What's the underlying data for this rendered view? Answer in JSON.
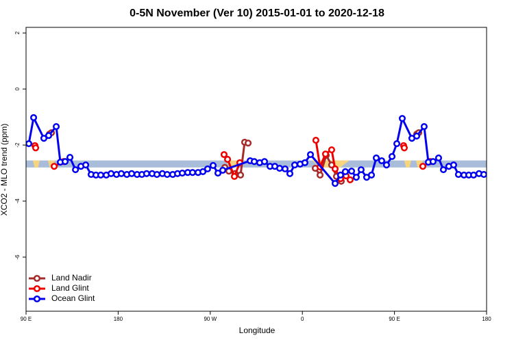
{
  "chart_data": {
    "type": "line",
    "title": "0-5N November (Ver 10)   2015-01-01 to 2020-12-18",
    "x_label": "Longitude",
    "y_label": "XCO2 - MLO trend (ppm)",
    "xlim": [
      90,
      540
    ],
    "ylim": [
      -7.93,
      2.2
    ],
    "xticks": [
      {
        "value": 90,
        "label": "90 E"
      },
      {
        "value": 180,
        "label": "180"
      },
      {
        "value": 270,
        "label": "90 W"
      },
      {
        "value": 360,
        "label": "0"
      },
      {
        "value": 450,
        "label": "90 E"
      },
      {
        "value": 540,
        "label": "180"
      }
    ],
    "yticks": [
      2,
      0,
      -2,
      -4,
      -6
    ],
    "band": {
      "ymin": -2.8,
      "ymax": -2.55,
      "color": "#a9bddb"
    },
    "highlights": {
      "color": "#f9d47e",
      "ranges": [
        [
          96.7,
          103.4
        ],
        [
          111.4,
          118.1
        ],
        [
          285.5,
          300.3
        ],
        [
          369.2,
          406
        ],
        [
          459.6,
          466.3
        ],
        [
          471,
          477.7
        ]
      ]
    },
    "legend": "bottom-left",
    "series": [
      {
        "name": "Land Nadir",
        "color": "#a52a2a",
        "x": [
          112.8,
          114.8,
          null,
          284.2,
          288.2,
          294.2,
          299.6,
          303.6,
          307.0,
          null,
          372.6,
          377.3,
          383.3,
          388.6,
          393.3,
          398.0,
          null,
          471.7,
          473.7
        ],
        "values": [
          -1.61,
          -1.56,
          null,
          -2.8,
          -2.93,
          -3.02,
          -3.07,
          -1.9,
          -1.93,
          null,
          -2.83,
          -3.07,
          -2.37,
          -2.71,
          -3.12,
          -3.29,
          null,
          -1.61,
          -1.56
        ]
      },
      {
        "name": "Land Glint",
        "color": "#ee0000",
        "x": [
          98.7,
          99.4,
          null,
          117.5,
          126.8,
          null,
          283.5,
          286.9,
          293.6,
          298.9,
          null,
          373.2,
          377.3,
          382.6,
          388.6,
          392.0,
          397.3,
          402.7,
          406.7,
          null,
          458.9,
          459.6,
          null,
          477.7,
          485.0
        ],
        "values": [
          -2.02,
          -2.1,
          null,
          -2.76,
          -2.59,
          null,
          -2.34,
          -2.51,
          -3.12,
          -2.63,
          null,
          -1.83,
          -2.78,
          -2.32,
          -2.17,
          -2.85,
          -3.2,
          -3.1,
          -3.24,
          null,
          -2.02,
          -2.1,
          null,
          -2.76,
          -2.59
        ]
      },
      {
        "name": "Ocean Glint",
        "color": "#0000ee",
        "x": [
          92.7,
          97.4,
          107.4,
          112.1,
          119.5,
          123.5,
          128.2,
          132.9,
          138.3,
          143.6,
          148.3,
          153.6,
          158.3,
          163.0,
          168.4,
          173.1,
          178.4,
          183.1,
          188.5,
          193.2,
          198.5,
          203.2,
          207.8,
          213.2,
          217.9,
          223.2,
          227.9,
          233.3,
          238.0,
          242.7,
          248.0,
          252.7,
          258.1,
          262.8,
          267.4,
          272.8,
          277.5,
          282.2,
          309.0,
          313.0,
          318.3,
          323.0,
          328.4,
          333.1,
          337.8,
          343.1,
          347.8,
          352.5,
          357.8,
          362.5,
          367.9,
          392.0,
          397.3,
          402.0,
          408.1,
          412.7,
          417.4,
          422.8,
          427.5,
          432.2,
          437.5,
          442.2,
          447.6,
          452.3,
          457.6,
          467.0,
          471.7,
          479.0,
          483.1,
          487.7,
          493.1,
          497.8,
          503.1,
          507.8,
          512.5,
          517.9,
          522.6,
          527.3,
          532.6,
          537.3
        ],
        "values": [
          -1.95,
          -1.02,
          -1.76,
          -1.66,
          -1.34,
          -2.61,
          -2.59,
          -2.44,
          -2.88,
          -2.76,
          -2.71,
          -3.05,
          -3.07,
          -3.07,
          -3.07,
          -3.02,
          -3.05,
          -3.02,
          -3.05,
          -3.02,
          -3.05,
          -3.05,
          -3.02,
          -3.02,
          -3.05,
          -3.02,
          -3.05,
          -3.05,
          -3.02,
          -3.0,
          -2.98,
          -2.98,
          -2.98,
          -2.95,
          -2.85,
          -2.73,
          -3.0,
          -2.9,
          -2.56,
          -2.59,
          -2.63,
          -2.59,
          -2.76,
          -2.76,
          -2.83,
          -2.85,
          -3.02,
          -2.71,
          -2.68,
          -2.63,
          -2.34,
          -3.37,
          -3.07,
          -2.95,
          -2.93,
          -3.15,
          -2.88,
          -3.15,
          -3.07,
          -2.46,
          -2.56,
          -2.71,
          -2.41,
          -1.95,
          -1.05,
          -1.76,
          -1.68,
          -1.34,
          -2.61,
          -2.59,
          -2.46,
          -2.88,
          -2.76,
          -2.71,
          -3.05,
          -3.07,
          -3.07,
          -3.07,
          -3.02,
          -3.05
        ]
      }
    ]
  }
}
